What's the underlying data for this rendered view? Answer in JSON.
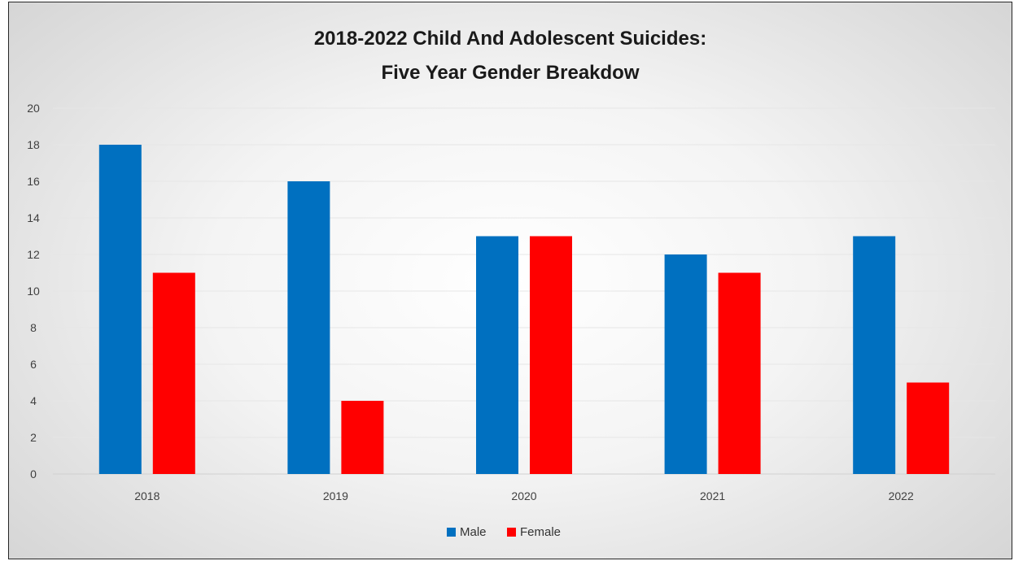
{
  "chart_data": {
    "type": "bar",
    "title": [
      "2018-2022 Child And Adolescent Suicides:",
      "Five Year Gender Breakdow"
    ],
    "categories": [
      "2018",
      "2019",
      "2020",
      "2021",
      "2022"
    ],
    "series": [
      {
        "name": "Male",
        "color": "#0070c0",
        "values": [
          18,
          16,
          13,
          12,
          13
        ]
      },
      {
        "name": "Female",
        "color": "#ff0000",
        "values": [
          11,
          4,
          13,
          11,
          5
        ]
      }
    ],
    "ylim": [
      0,
      20
    ],
    "yticks": [
      "0",
      "2",
      "4",
      "6",
      "8",
      "10",
      "12",
      "14",
      "16",
      "18",
      "20"
    ],
    "grid": true,
    "legend_position": "bottom"
  }
}
